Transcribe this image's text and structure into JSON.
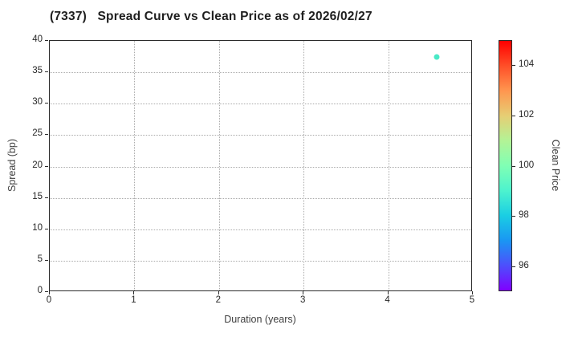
{
  "title": "(7337)   Spread Curve vs Clean Price as of 2026/02/27",
  "chart_data": {
    "type": "scatter",
    "title": "(7337)   Spread Curve vs Clean Price as of 2026/02/27",
    "xlabel": "Duration (years)",
    "ylabel": "Spread (bp)",
    "xlim": [
      0,
      5
    ],
    "ylim": [
      0,
      40
    ],
    "x_ticks": [
      0,
      1,
      2,
      3,
      4,
      5
    ],
    "y_ticks": [
      0,
      5,
      10,
      15,
      20,
      25,
      30,
      35,
      40
    ],
    "grid": true,
    "grid_style": "dotted",
    "points": [
      {
        "x": 4.57,
        "y": 37.4,
        "clean_price": 99.0,
        "color": "#49e9c6"
      }
    ],
    "colorbar": {
      "label": "Clean Price",
      "min": 95,
      "max": 105,
      "ticks": [
        96,
        98,
        100,
        102,
        104
      ],
      "colormap": "rainbow",
      "gradient_top_to_bottom": [
        "#ff0000",
        "#ff4f28",
        "#ff964f",
        "#e6ce74",
        "#b3f396",
        "#80ffb4",
        "#4df3ce",
        "#1acee3",
        "#1a96f3",
        "#4d4ffc",
        "#8000ff"
      ]
    }
  }
}
